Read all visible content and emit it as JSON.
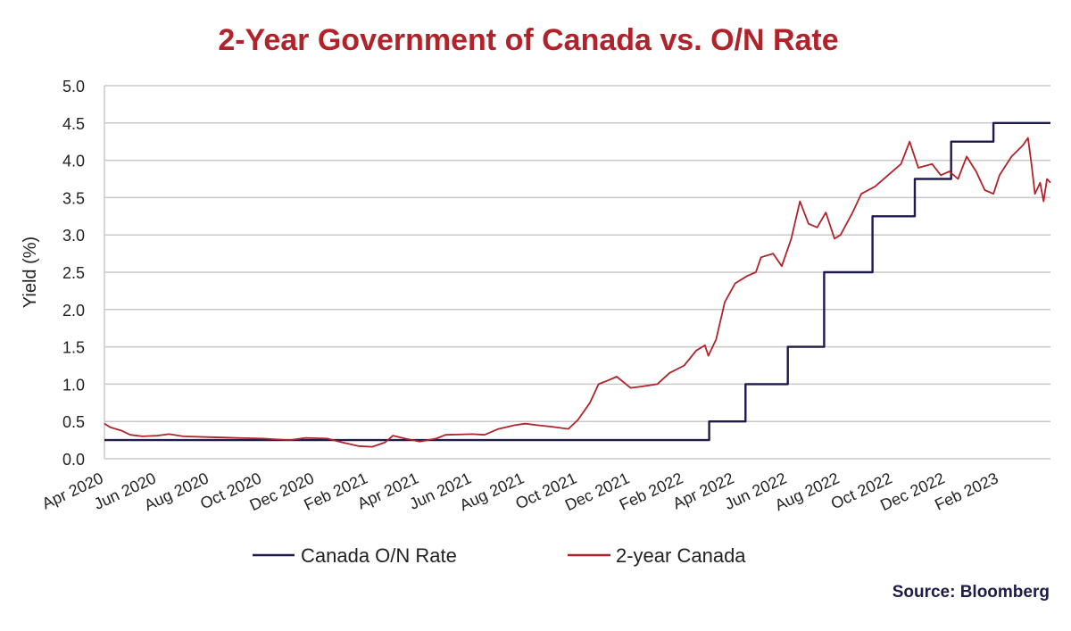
{
  "colors": {
    "title": "#b0232a",
    "on_rate": "#1e1b4b",
    "two_year": "#b0232a",
    "grid": "#c8c8c8",
    "source": "#1e1b4b"
  },
  "source": "Source: Bloomberg",
  "chart_data": {
    "type": "line",
    "title": "2-Year Government of Canada vs. O/N Rate",
    "ylabel": "Yield (%)",
    "xlabel": "",
    "ylim": [
      0,
      5
    ],
    "y_ticks": [
      "0.0",
      "0.5",
      "1.0",
      "1.5",
      "2.0",
      "2.5",
      "3.0",
      "3.5",
      "4.0",
      "4.5",
      "5.0"
    ],
    "x_ticks": [
      "Apr 2020",
      "Jun 2020",
      "Aug 2020",
      "Oct 2020",
      "Dec 2020",
      "Feb 2021",
      "Apr 2021",
      "Jun 2021",
      "Aug 2021",
      "Oct 2021",
      "Dec 2021",
      "Feb 2022",
      "Apr 2022",
      "Jun 2022",
      "Aug 2022",
      "Oct 2022",
      "Dec 2022",
      "Feb 2023"
    ],
    "xlim": [
      "2020-04-01",
      "2023-04-01"
    ],
    "grid": true,
    "legend": "bottom",
    "series": [
      {
        "name": "Canada O/N Rate",
        "kind": "step",
        "points": [
          [
            "2020-04-01",
            0.25
          ],
          [
            "2022-03-02",
            0.5
          ],
          [
            "2022-04-13",
            1.0
          ],
          [
            "2022-06-01",
            1.5
          ],
          [
            "2022-07-13",
            2.5
          ],
          [
            "2022-09-07",
            3.25
          ],
          [
            "2022-10-26",
            3.75
          ],
          [
            "2022-12-07",
            4.25
          ],
          [
            "2023-01-25",
            4.5
          ],
          [
            "2023-04-01",
            4.5
          ]
        ]
      },
      {
        "name": "2-year Canada",
        "kind": "line",
        "points": [
          [
            "2020-04-01",
            0.47
          ],
          [
            "2020-04-08",
            0.42
          ],
          [
            "2020-04-20",
            0.38
          ],
          [
            "2020-05-01",
            0.32
          ],
          [
            "2020-05-15",
            0.3
          ],
          [
            "2020-06-01",
            0.31
          ],
          [
            "2020-06-15",
            0.33
          ],
          [
            "2020-07-01",
            0.3
          ],
          [
            "2020-08-01",
            0.29
          ],
          [
            "2020-09-01",
            0.28
          ],
          [
            "2020-10-01",
            0.27
          ],
          [
            "2020-11-01",
            0.25
          ],
          [
            "2020-11-20",
            0.28
          ],
          [
            "2020-12-15",
            0.27
          ],
          [
            "2021-01-01",
            0.22
          ],
          [
            "2021-01-20",
            0.17
          ],
          [
            "2021-02-05",
            0.16
          ],
          [
            "2021-02-20",
            0.22
          ],
          [
            "2021-03-01",
            0.31
          ],
          [
            "2021-03-15",
            0.27
          ],
          [
            "2021-04-01",
            0.23
          ],
          [
            "2021-04-20",
            0.27
          ],
          [
            "2021-05-01",
            0.32
          ],
          [
            "2021-06-01",
            0.33
          ],
          [
            "2021-06-15",
            0.32
          ],
          [
            "2021-07-01",
            0.4
          ],
          [
            "2021-07-20",
            0.45
          ],
          [
            "2021-08-01",
            0.47
          ],
          [
            "2021-08-15",
            0.45
          ],
          [
            "2021-09-01",
            0.43
          ],
          [
            "2021-09-20",
            0.4
          ],
          [
            "2021-10-01",
            0.52
          ],
          [
            "2021-10-15",
            0.75
          ],
          [
            "2021-10-25",
            1.0
          ],
          [
            "2021-11-05",
            1.05
          ],
          [
            "2021-11-15",
            1.1
          ],
          [
            "2021-12-01",
            0.95
          ],
          [
            "2021-12-15",
            0.97
          ],
          [
            "2022-01-01",
            1.0
          ],
          [
            "2022-01-15",
            1.15
          ],
          [
            "2022-02-01",
            1.25
          ],
          [
            "2022-02-15",
            1.45
          ],
          [
            "2022-02-25",
            1.52
          ],
          [
            "2022-03-01",
            1.38
          ],
          [
            "2022-03-10",
            1.6
          ],
          [
            "2022-03-20",
            2.1
          ],
          [
            "2022-04-01",
            2.35
          ],
          [
            "2022-04-15",
            2.45
          ],
          [
            "2022-04-25",
            2.5
          ],
          [
            "2022-05-01",
            2.7
          ],
          [
            "2022-05-15",
            2.75
          ],
          [
            "2022-05-25",
            2.58
          ],
          [
            "2022-06-05",
            2.95
          ],
          [
            "2022-06-15",
            3.45
          ],
          [
            "2022-06-25",
            3.15
          ],
          [
            "2022-07-05",
            3.1
          ],
          [
            "2022-07-15",
            3.3
          ],
          [
            "2022-07-25",
            2.95
          ],
          [
            "2022-08-01",
            3.0
          ],
          [
            "2022-08-15",
            3.3
          ],
          [
            "2022-08-25",
            3.55
          ],
          [
            "2022-09-10",
            3.65
          ],
          [
            "2022-09-25",
            3.8
          ],
          [
            "2022-10-10",
            3.95
          ],
          [
            "2022-10-20",
            4.25
          ],
          [
            "2022-10-30",
            3.9
          ],
          [
            "2022-11-15",
            3.95
          ],
          [
            "2022-11-25",
            3.8
          ],
          [
            "2022-12-05",
            3.85
          ],
          [
            "2022-12-15",
            3.75
          ],
          [
            "2022-12-25",
            4.05
          ],
          [
            "2023-01-05",
            3.85
          ],
          [
            "2023-01-15",
            3.6
          ],
          [
            "2023-01-25",
            3.55
          ],
          [
            "2023-02-01",
            3.8
          ],
          [
            "2023-02-15",
            4.05
          ],
          [
            "2023-02-28",
            4.2
          ],
          [
            "2023-03-06",
            4.3
          ],
          [
            "2023-03-10",
            3.95
          ],
          [
            "2023-03-14",
            3.55
          ],
          [
            "2023-03-20",
            3.7
          ],
          [
            "2023-03-24",
            3.45
          ],
          [
            "2023-03-28",
            3.75
          ],
          [
            "2023-04-01",
            3.7
          ]
        ]
      }
    ]
  }
}
